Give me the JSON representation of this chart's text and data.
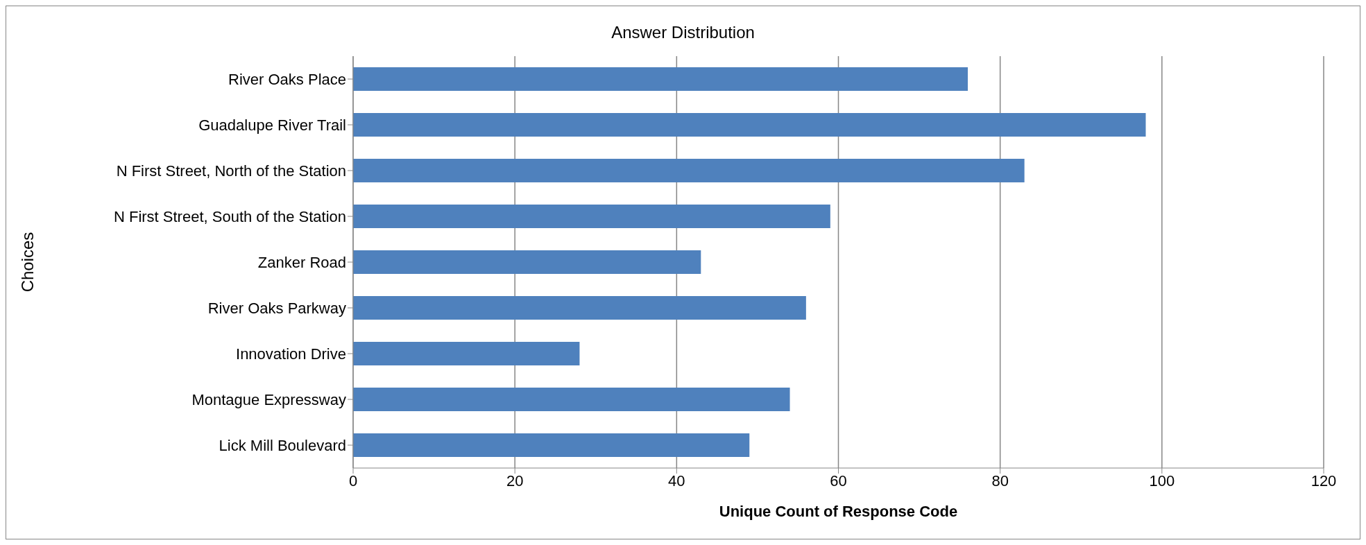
{
  "chart_data": {
    "type": "bar",
    "orientation": "horizontal",
    "title": "Answer Distribution",
    "xlabel": "Unique Count of Response Code",
    "ylabel": "Choices",
    "categories": [
      "River Oaks Place",
      "Guadalupe River Trail",
      "N First Street, North of the Station",
      "N First Street, South of the Station",
      "Zanker Road",
      "River Oaks Parkway",
      "Innovation Drive",
      "Montague Expressway",
      "Lick Mill Boulevard"
    ],
    "values": [
      76,
      98,
      83,
      59,
      43,
      56,
      28,
      54,
      49
    ],
    "color": "#4f81bd",
    "xlim": [
      0,
      120
    ],
    "xticks": [
      0,
      20,
      40,
      60,
      80,
      100,
      120
    ],
    "grid": "x"
  }
}
